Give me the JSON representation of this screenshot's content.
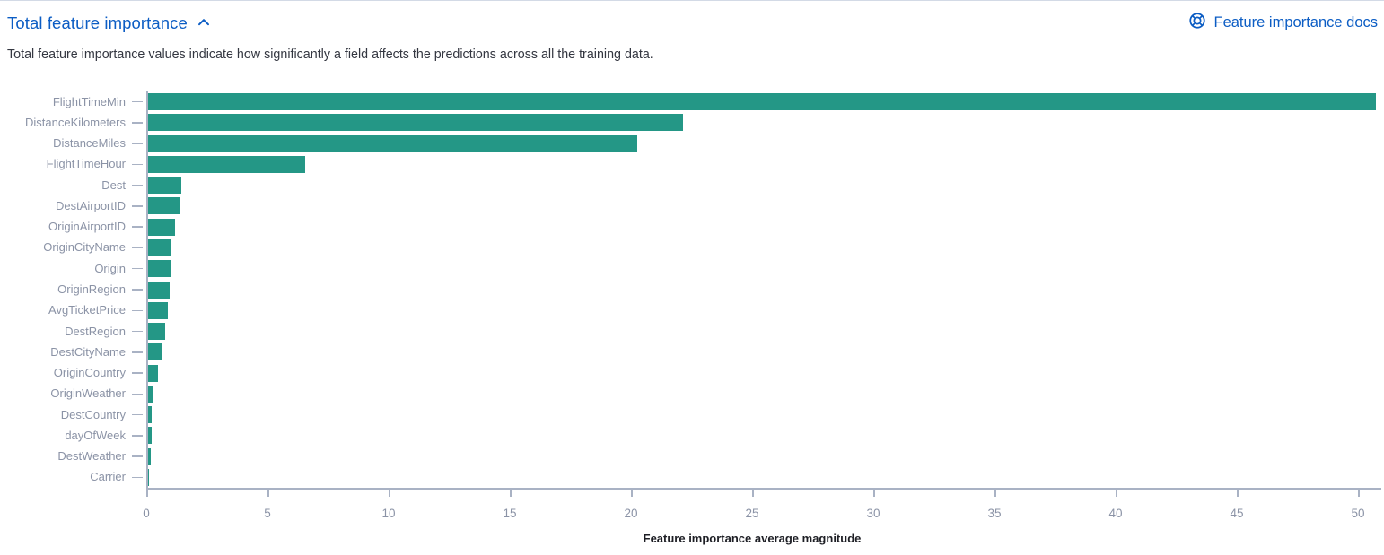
{
  "header": {
    "title": "Total feature importance",
    "docs_link_label": "Feature importance docs",
    "subtitle": "Total feature importance values indicate how significantly a field affects the predictions across all the training data."
  },
  "icons": {
    "section_toggle": "chevron-up-icon",
    "docs": "help-ring-icon"
  },
  "colors": {
    "bar": "#249786",
    "link_blue": "#0c5dc4",
    "axis_line": "#a9b2c4",
    "tick_label": "#8b93a6",
    "subtitle_text": "#343741",
    "axis_title_text": "#1d1e24"
  },
  "chart_data": {
    "type": "bar",
    "orientation": "horizontal",
    "title": "",
    "xlabel": "Feature importance average magnitude",
    "ylabel": "",
    "xlim": [
      0,
      50
    ],
    "x_ticks": [
      0,
      5,
      10,
      15,
      20,
      25,
      30,
      35,
      40,
      45,
      50
    ],
    "grid": false,
    "legend": "none",
    "categories": [
      "FlightTimeMin",
      "DistanceKilometers",
      "DistanceMiles",
      "FlightTimeHour",
      "Dest",
      "DestAirportID",
      "OriginAirportID",
      "OriginCityName",
      "Origin",
      "OriginRegion",
      "AvgTicketPrice",
      "DestRegion",
      "DestCityName",
      "OriginCountry",
      "OriginWeather",
      "DestCountry",
      "dayOfWeek",
      "DestWeather",
      "Carrier"
    ],
    "values": [
      50.7,
      22.1,
      20.2,
      6.5,
      1.38,
      1.33,
      1.12,
      0.97,
      0.95,
      0.9,
      0.84,
      0.73,
      0.6,
      0.44,
      0.19,
      0.18,
      0.16,
      0.14,
      0.07
    ]
  }
}
